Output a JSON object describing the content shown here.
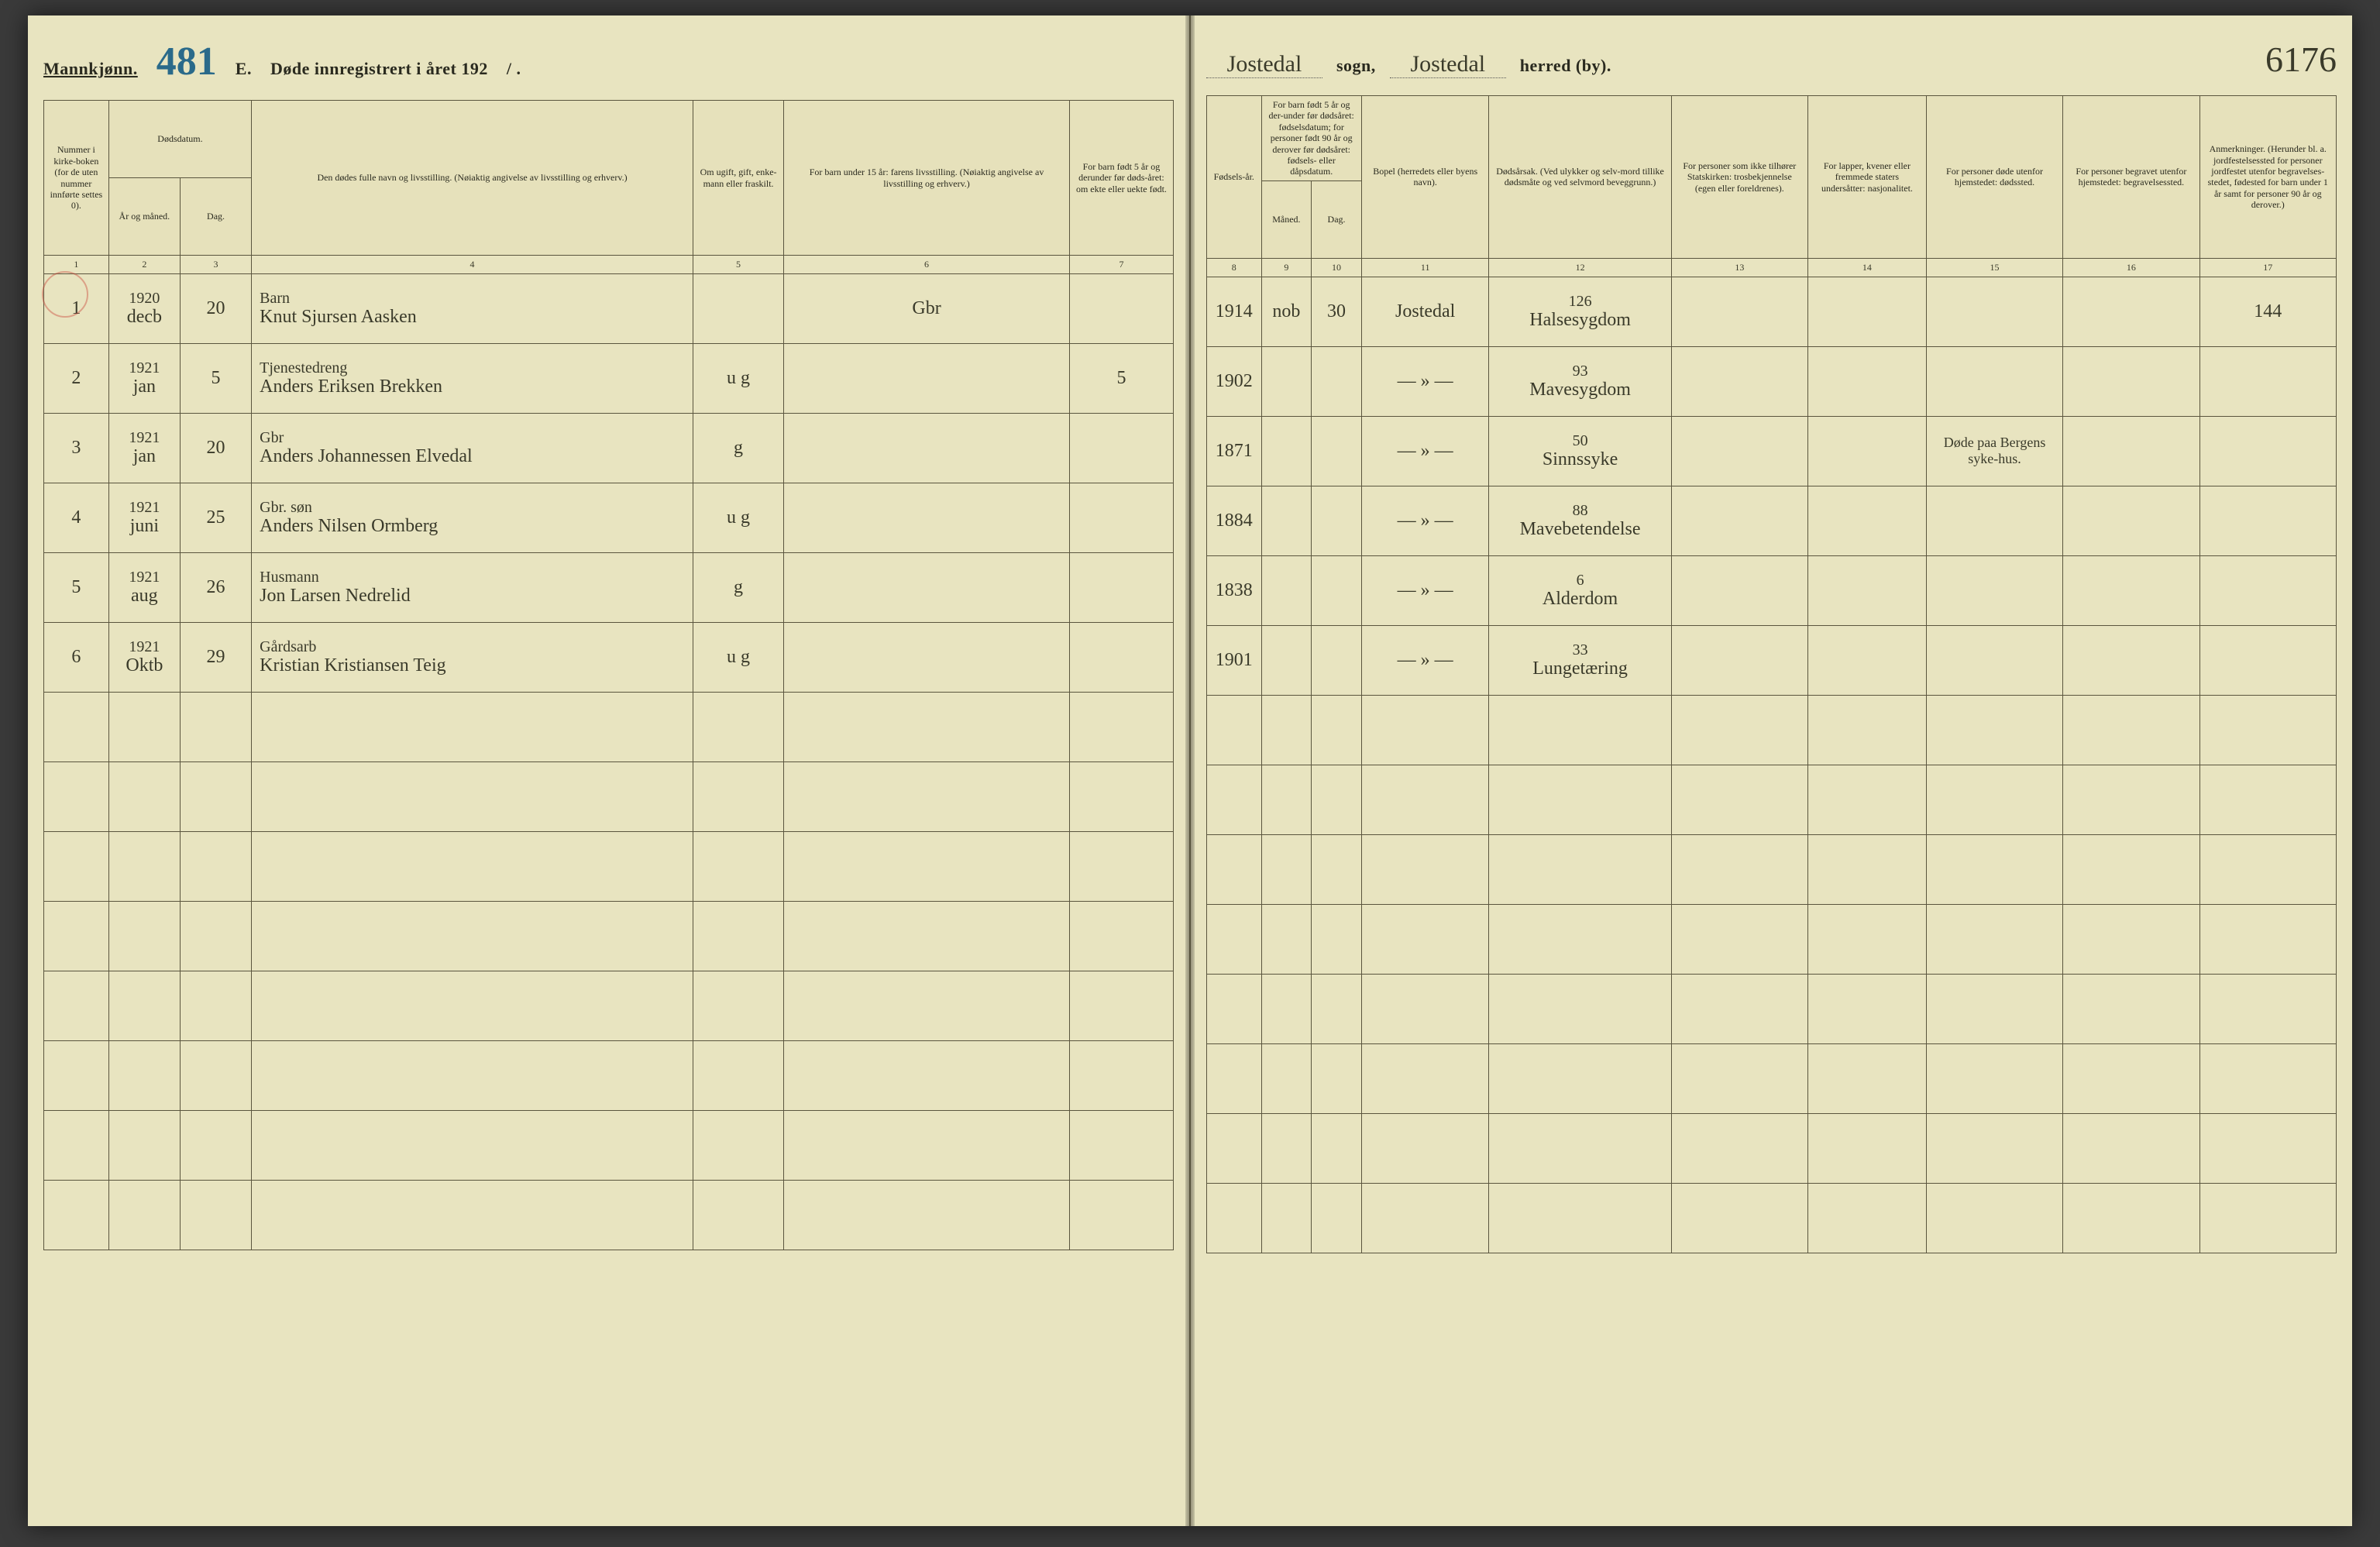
{
  "header_left": {
    "gender_label": "Mannkjønn.",
    "page_script": "481",
    "title_prefix": "E.",
    "title_main": "Døde innregistrert i året 192",
    "year_suffix": "/ ."
  },
  "header_right": {
    "sogn_value": "Jostedal",
    "sogn_label": "sogn,",
    "herred_value": "Jostedal",
    "herred_label": "herred (by).",
    "page_script": "6176"
  },
  "columns": {
    "c1": "Nummer i kirke-boken (for de uten nummer innførte settes 0).",
    "c2_3_group": "Dødsdatum.",
    "c2": "År og måned.",
    "c3": "Dag.",
    "c4": "Den dødes fulle navn og livsstilling. (Nøiaktig angivelse av livsstilling og erhverv.)",
    "c5": "Om ugift, gift, enke-mann eller fraskilt.",
    "c6": "For barn under 15 år: farens livsstilling. (Nøiaktig angivelse av livsstilling og erhverv.)",
    "c7": "For barn født 5 år og derunder før døds-året: om ekte eller uekte født.",
    "c8": "Fødsels-år.",
    "c9_10_group": "For barn født 5 år og der-under før dødsåret: fødselsdatum; for personer født 90 år og derover før dødsåret: fødsels- eller dåpsdatum.",
    "c9": "Måned.",
    "c10": "Dag.",
    "c11": "Bopel (herredets eller byens navn).",
    "c12": "Dødsårsak. (Ved ulykker og selv-mord tillike dødsmåte og ved selvmord beveggrunn.)",
    "c13": "For personer som ikke tilhører Statskirken: trosbekjennelse (egen eller foreldrenes).",
    "c14": "For lapper, kvener eller fremmede staters undersåtter: nasjonalitet.",
    "c15": "For personer døde utenfor hjemstedet: dødssted.",
    "c16": "For personer begravet utenfor hjemstedet: begravelsessted.",
    "c17": "Anmerkninger. (Herunder bl. a. jordfestelsessted for personer jordfestet utenfor begravelses-stedet, fødested for barn under 1 år samt for personer 90 år og derover.)"
  },
  "colnums": [
    "1",
    "2",
    "3",
    "4",
    "5",
    "6",
    "7",
    "8",
    "9",
    "10",
    "11",
    "12",
    "13",
    "14",
    "15",
    "16",
    "17"
  ],
  "rows": [
    {
      "n": "1",
      "year": "1920",
      "month": "decb",
      "day": "20",
      "name_top": "Barn",
      "name": "Knut Sjursen Aasken",
      "status": "",
      "c6": "Gbr",
      "c7": "",
      "born": "1914",
      "b_m": "nob",
      "b_d": "30",
      "place": "Jostedal",
      "cause_no": "126",
      "cause": "Halsesygdom",
      "c13": "",
      "c14": "",
      "c15": "",
      "c16": "",
      "c17": "144"
    },
    {
      "n": "2",
      "year": "1921",
      "month": "jan",
      "day": "5",
      "name_top": "Tjenestedreng",
      "name": "Anders Eriksen Brekken",
      "status": "u g",
      "c6": "",
      "c7": "5",
      "born": "1902",
      "b_m": "",
      "b_d": "",
      "place": "— » —",
      "cause_no": "93",
      "cause": "Mavesygdom",
      "c13": "",
      "c14": "",
      "c15": "",
      "c16": "",
      "c17": ""
    },
    {
      "n": "3",
      "year": "1921",
      "month": "jan",
      "day": "20",
      "name_top": "Gbr",
      "name": "Anders Johannessen Elvedal",
      "status": "g",
      "c6": "",
      "c7": "",
      "born": "1871",
      "b_m": "",
      "b_d": "",
      "place": "— » —",
      "cause_no": "50",
      "cause": "Sinnssyke",
      "c13": "",
      "c14": "",
      "c15": "Døde paa Bergens syke-hus.",
      "c16": "",
      "c17": ""
    },
    {
      "n": "4",
      "year": "1921",
      "month": "juni",
      "day": "25",
      "name_top": "Gbr. søn",
      "name": "Anders Nilsen Ormberg",
      "status": "u g",
      "c6": "",
      "c7": "",
      "born": "1884",
      "b_m": "",
      "b_d": "",
      "place": "— » —",
      "cause_no": "88",
      "cause": "Mavebetendelse",
      "c13": "",
      "c14": "",
      "c15": "",
      "c16": "",
      "c17": ""
    },
    {
      "n": "5",
      "year": "1921",
      "month": "aug",
      "day": "26",
      "name_top": "Husmann",
      "name": "Jon Larsen Nedrelid",
      "status": "g",
      "c6": "",
      "c7": "",
      "born": "1838",
      "b_m": "",
      "b_d": "",
      "place": "— » —",
      "cause_no": "6",
      "cause": "Alderdom",
      "c13": "",
      "c14": "",
      "c15": "",
      "c16": "",
      "c17": ""
    },
    {
      "n": "6",
      "year": "1921",
      "month": "Oktb",
      "day": "29",
      "name_top": "Gårdsarb",
      "name": "Kristian Kristiansen Teig",
      "status": "u g",
      "c6": "",
      "c7": "",
      "born": "1901",
      "b_m": "",
      "b_d": "",
      "place": "— » —",
      "cause_no": "33",
      "cause": "Lungetæring",
      "c13": "",
      "c14": "",
      "c15": "",
      "c16": "",
      "c17": ""
    }
  ],
  "blank_row_count": 8
}
